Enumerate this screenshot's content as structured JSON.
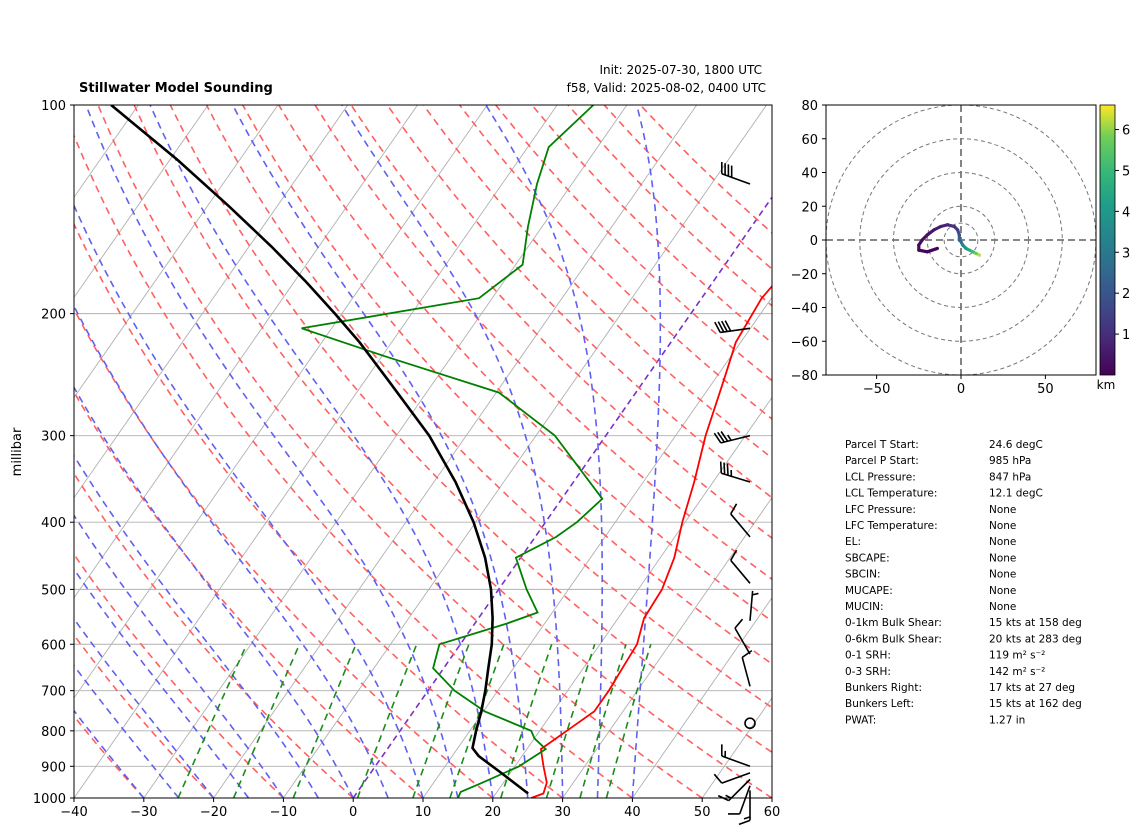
{
  "header": {
    "title": "Stillwater Model Sounding",
    "init": "Init: 2025-07-30, 1800 UTC",
    "valid": "f58, Valid: 2025-08-02, 0400 UTC"
  },
  "colors": {
    "temperature": "#ff0000",
    "dewpoint": "#008000",
    "parcel": "#000000",
    "dry_adiabat": "#ff6060",
    "moist_adiabat": "#6060f0",
    "mixing_ratio": "#1a8c1a",
    "isotherm_zero": "#7a30c8",
    "grid": "#b0b0b0"
  },
  "chart_data": [
    {
      "type": "line",
      "name": "skew-t",
      "ylabel": "millibar",
      "xlabel": "",
      "xlim": [
        -40,
        60
      ],
      "ylim": [
        1000,
        100
      ],
      "y_scale": "log",
      "x_ticks": [
        -40,
        -30,
        -20,
        -10,
        0,
        10,
        20,
        30,
        40,
        50,
        60
      ],
      "y_ticks": [
        100,
        200,
        300,
        400,
        500,
        600,
        700,
        800,
        900,
        1000
      ],
      "grid": true,
      "series": [
        {
          "key": "temperature",
          "points": [
            [
              1000,
              25.5
            ],
            [
              985,
              26.8
            ],
            [
              950,
              26.2
            ],
            [
              900,
              24.1
            ],
            [
              850,
              22.0
            ],
            [
              800,
              23.9
            ],
            [
              750,
              25.9
            ],
            [
              700,
              25.9
            ],
            [
              650,
              25.6
            ],
            [
              600,
              25.3
            ],
            [
              550,
              23.7
            ],
            [
              500,
              23.4
            ],
            [
              450,
              22.0
            ],
            [
              400,
              19.6
            ],
            [
              350,
              17.3
            ],
            [
              300,
              14.3
            ],
            [
              250,
              11.4
            ],
            [
              220,
              9.3
            ],
            [
              190,
              8.6
            ],
            [
              160,
              9.8
            ],
            [
              140,
              10.7
            ],
            [
              120,
              17.3
            ],
            [
              110,
              24.0
            ],
            [
              100,
              30.0
            ]
          ]
        },
        {
          "key": "dewpoint",
          "points": [
            [
              1000,
              15.0
            ],
            [
              980,
              14.8
            ],
            [
              950,
              17.0
            ],
            [
              900,
              20.6
            ],
            [
              850,
              22.7
            ],
            [
              820,
              20.0
            ],
            [
              800,
              18.8
            ],
            [
              750,
              10.2
            ],
            [
              700,
              3.8
            ],
            [
              650,
              -1.5
            ],
            [
              600,
              -3.0
            ],
            [
              560,
              4.6
            ],
            [
              540,
              7.9
            ],
            [
              500,
              4.0
            ],
            [
              450,
              -0.7
            ],
            [
              420,
              3.0
            ],
            [
              400,
              4.5
            ],
            [
              370,
              5.8
            ],
            [
              300,
              -7.3
            ],
            [
              260,
              -19.6
            ],
            [
              230,
              -39.9
            ],
            [
              210,
              -54.3
            ],
            [
              190,
              -31.9
            ],
            [
              170,
              -29.0
            ],
            [
              150,
              -32.0
            ],
            [
              130,
              -35.0
            ],
            [
              115,
              -37.0
            ],
            [
              100,
              -34.8
            ]
          ]
        },
        {
          "key": "parcel",
          "points": [
            [
              985,
              24.6
            ],
            [
              920,
              18.7
            ],
            [
              870,
              13.8
            ],
            [
              847,
              12.1
            ],
            [
              800,
              10.9
            ],
            [
              750,
              9.7
            ],
            [
              700,
              8.2
            ],
            [
              650,
              6.4
            ],
            [
              600,
              4.5
            ],
            [
              550,
              2.0
            ],
            [
              500,
              -1.1
            ],
            [
              450,
              -5.1
            ],
            [
              400,
              -10.3
            ],
            [
              350,
              -16.9
            ],
            [
              300,
              -25.3
            ],
            [
              250,
              -36.6
            ],
            [
              220,
              -44.6
            ],
            [
              200,
              -51.0
            ],
            [
              180,
              -58.3
            ],
            [
              160,
              -66.8
            ],
            [
              140,
              -76.9
            ],
            [
              120,
              -88.9
            ],
            [
              100,
              -103.9
            ]
          ]
        }
      ],
      "wind_barbs": [
        {
          "p": 975,
          "dir": 180,
          "spd": 15
        },
        {
          "p": 960,
          "dir": 200,
          "spd": 10
        },
        {
          "p": 940,
          "dir": 225,
          "spd": 15
        },
        {
          "p": 920,
          "dir": 250,
          "spd": 10
        },
        {
          "p": 900,
          "dir": 290,
          "spd": 15
        },
        {
          "p": 780,
          "dir": 0,
          "spd": 0
        },
        {
          "p": 690,
          "dir": 345,
          "spd": 10
        },
        {
          "p": 620,
          "dir": 330,
          "spd": 10
        },
        {
          "p": 555,
          "dir": 5,
          "spd": 5
        },
        {
          "p": 490,
          "dir": 320,
          "spd": 10
        },
        {
          "p": 420,
          "dir": 320,
          "spd": 10
        },
        {
          "p": 350,
          "dir": 287,
          "spd": 35
        },
        {
          "p": 300,
          "dir": 256,
          "spd": 35
        },
        {
          "p": 210,
          "dir": 262,
          "spd": 40
        },
        {
          "p": 130,
          "dir": 290,
          "spd": 40
        }
      ]
    },
    {
      "type": "line",
      "name": "hodograph",
      "xlim": [
        -80,
        80
      ],
      "ylim": [
        -80,
        80
      ],
      "x_ticks": [
        -50,
        0,
        50
      ],
      "y_ticks": [
        -80,
        -60,
        -40,
        -20,
        0,
        20,
        40,
        60,
        80
      ],
      "rings": [
        10,
        20,
        40,
        60,
        80
      ],
      "colorbar_label": "km",
      "colorbar_ticks": [
        1,
        2,
        3,
        4,
        5,
        6
      ],
      "colorbar_range": [
        0,
        6.6
      ],
      "points": [
        [
          11,
          -9,
          6.5
        ],
        [
          9,
          -8,
          6.0
        ],
        [
          7,
          -7,
          5.4
        ],
        [
          5,
          -6,
          4.8
        ],
        [
          3,
          -5,
          4.2
        ],
        [
          1,
          -3,
          3.5
        ],
        [
          0,
          -1,
          3.0
        ],
        [
          -1,
          0,
          2.6
        ],
        [
          -1,
          3,
          2.1
        ],
        [
          -2,
          6,
          1.6
        ],
        [
          -4,
          8,
          1.2
        ],
        [
          -8,
          9,
          0.9
        ],
        [
          -12,
          8,
          0.7
        ],
        [
          -16,
          6,
          0.5
        ],
        [
          -20,
          3,
          0.4
        ],
        [
          -23,
          0,
          0.3
        ],
        [
          -25,
          -3,
          0.2
        ],
        [
          -25,
          -6,
          0.15
        ],
        [
          -20,
          -7,
          0.1
        ],
        [
          -14,
          -5,
          0.05
        ]
      ]
    }
  ],
  "params": {
    "rows": [
      {
        "label": "Parcel T Start:",
        "value": "24.6 degC"
      },
      {
        "label": "Parcel P Start:",
        "value": "985 hPa"
      },
      {
        "label": "LCL Pressure:",
        "value": "847 hPa"
      },
      {
        "label": "LCL Temperature:",
        "value": "12.1 degC"
      },
      {
        "label": "LFC Pressure:",
        "value": "None"
      },
      {
        "label": "LFC Temperature:",
        "value": "None"
      },
      {
        "label": "EL:",
        "value": "None"
      },
      {
        "label": "SBCAPE:",
        "value": "None"
      },
      {
        "label": "SBCIN:",
        "value": "None"
      },
      {
        "label": "MUCAPE:",
        "value": "None"
      },
      {
        "label": "MUCIN:",
        "value": "None"
      },
      {
        "label": "0-1km Bulk Shear:",
        "value": "15 kts at 158 deg"
      },
      {
        "label": "0-6km Bulk Shear:",
        "value": "20 kts at 283 deg"
      },
      {
        "label": "0-1 SRH:",
        "value": "119 m² s⁻²"
      },
      {
        "label": "0-3 SRH:",
        "value": "142 m² s⁻²"
      },
      {
        "label": "Bunkers Right:",
        "value": "17 kts at 27 deg"
      },
      {
        "label": "Bunkers Left:",
        "value": "15 kts at 162 deg"
      },
      {
        "label": "PWAT:",
        "value": "1.27 in"
      }
    ]
  }
}
